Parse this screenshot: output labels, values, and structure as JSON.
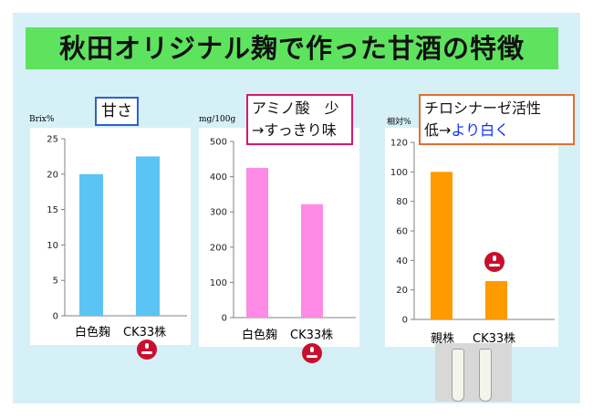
{
  "title": "秋田オリジナル麹で作った甘酒の特徴",
  "colors": {
    "background": "#d6f0f7",
    "title_bar": "#5ee35e",
    "blue_bars": "#5bc4f5",
    "pink_bars": "#ff8ae6",
    "orange_bars": "#ff9a00",
    "badge": "#c8102e"
  },
  "badge_icon": "red-round-logo-badge",
  "chart_data": [
    {
      "type": "bar",
      "label_box": "甘さ",
      "unit": "Brix%",
      "categories": [
        "白色麹",
        "CK33株"
      ],
      "values": [
        20,
        22.5
      ],
      "ylim": [
        0,
        25
      ],
      "yticks": [
        0,
        5,
        10,
        15,
        20,
        25
      ],
      "color": "#5bc4f5"
    },
    {
      "type": "bar",
      "label_box_line1": "アミノ酸　少",
      "label_box_line2": "→すっきり味",
      "unit": "mg/100g",
      "categories": [
        "白色麹",
        "CK33株"
      ],
      "values": [
        425,
        322
      ],
      "ylim": [
        0,
        500
      ],
      "yticks": [
        0,
        100,
        200,
        300,
        400,
        500
      ],
      "color": "#ff8ae6"
    },
    {
      "type": "bar",
      "label_box_line1": "チロシナーゼ活性",
      "label_box_line2_prefix": "低→",
      "label_box_line2_highlight": "より白く",
      "unit": "相対%",
      "categories": [
        "親株",
        "CK33株"
      ],
      "values": [
        100,
        26
      ],
      "ylim": [
        0,
        120
      ],
      "yticks": [
        0,
        20,
        40,
        60,
        80,
        100,
        120
      ],
      "color": "#ff9a00"
    }
  ]
}
